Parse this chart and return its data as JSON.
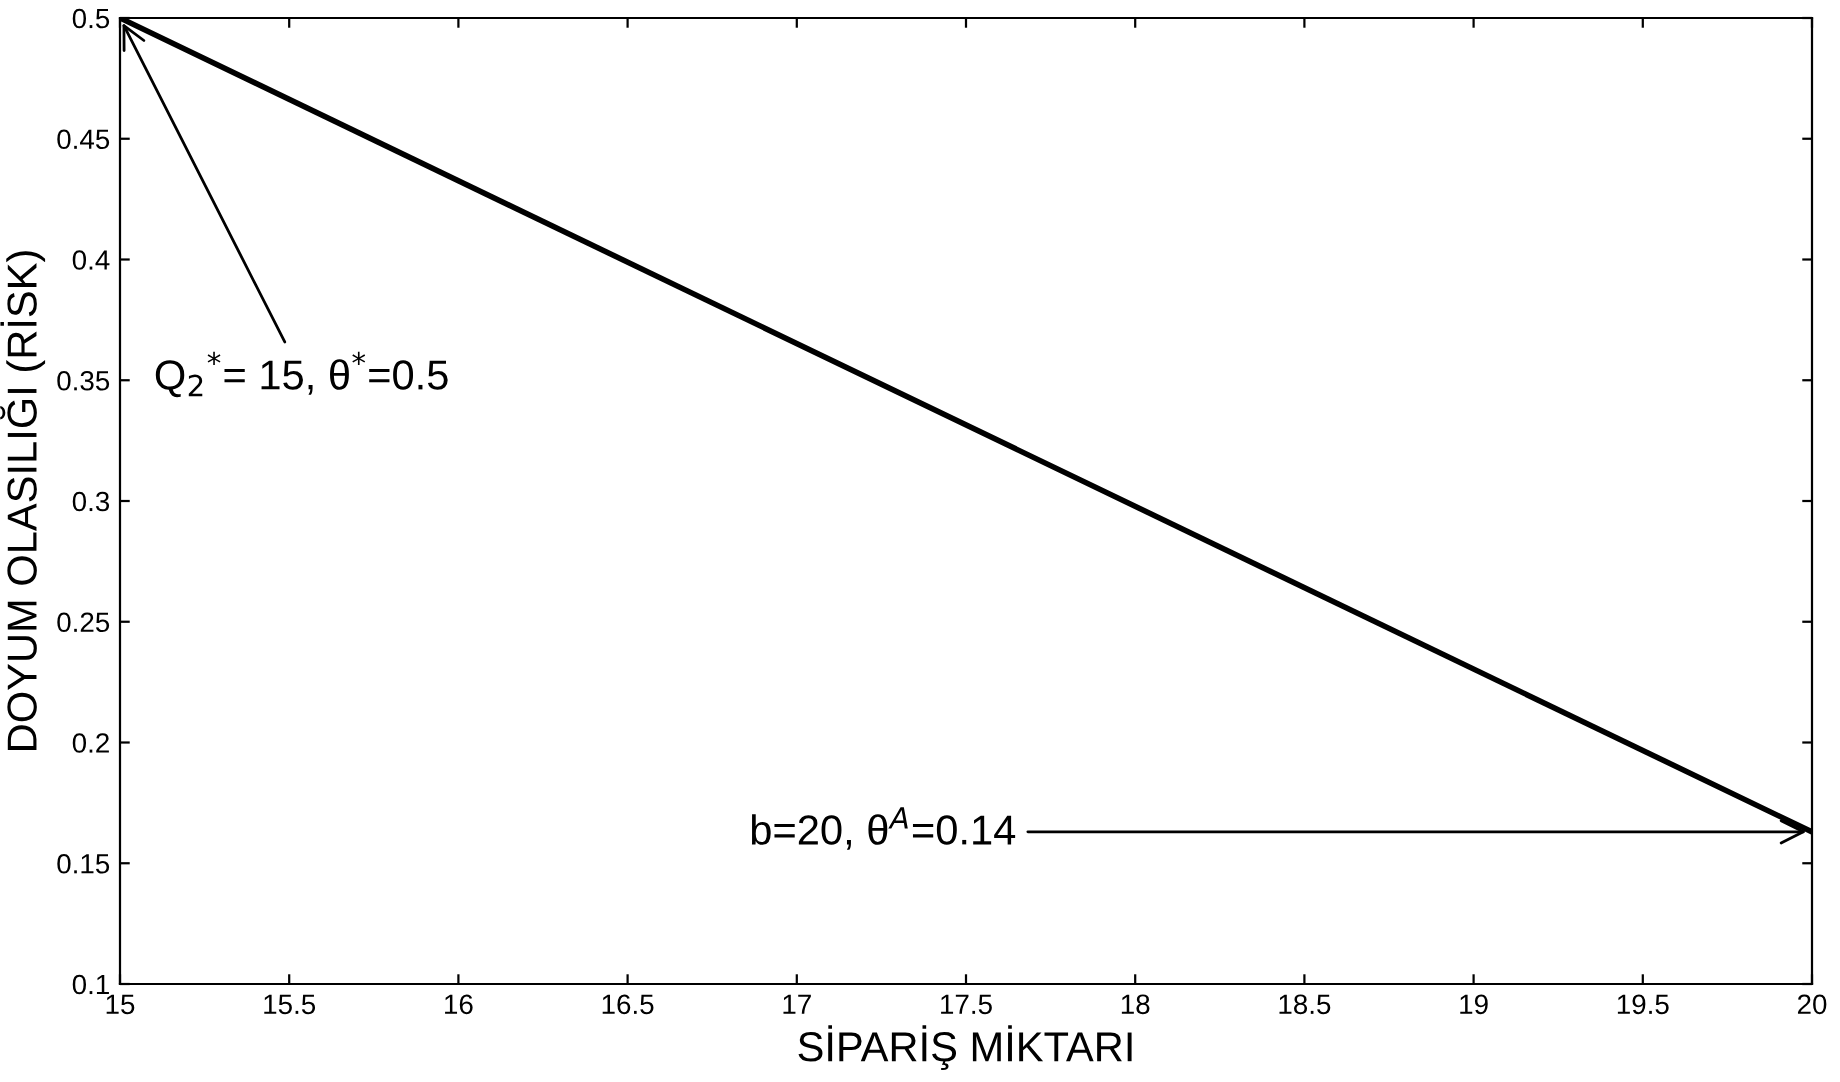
{
  "chart_data": {
    "type": "line",
    "xlabel": "SİPARİŞ MİKTARI",
    "ylabel": "DOYUM OLASILIĞI (RİSK)",
    "x": [
      15,
      20
    ],
    "series": [
      {
        "color": "#000000",
        "values": [
          0.5,
          0.163
        ]
      }
    ],
    "xlim": [
      15,
      20
    ],
    "xticks": [
      15,
      15.5,
      16,
      16.5,
      17,
      17.5,
      18,
      18.5,
      19,
      19.5,
      20
    ],
    "ylim": [
      0.1,
      0.5
    ],
    "yticks": [
      0.1,
      0.15,
      0.2,
      0.25,
      0.3,
      0.35,
      0.4,
      0.45,
      0.5
    ],
    "grid": false,
    "legend": false,
    "marker": "none",
    "line_style": "solid",
    "annotations": [
      {
        "text": "Q$_{2}$$^{*}$= 15, θ$^{*}$=0.5",
        "x": 15,
        "y": 0.5
      },
      {
        "text": "b=20, θ$^{A}$=0.14",
        "x": 20,
        "y": 0.163
      }
    ]
  }
}
